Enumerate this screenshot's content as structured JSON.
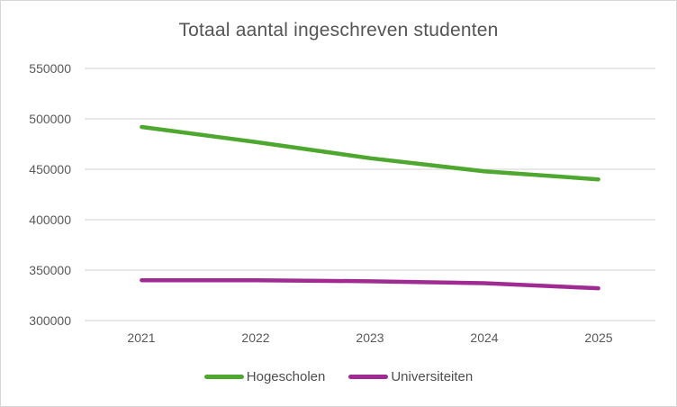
{
  "window": {
    "background_color": "#ffffff",
    "border_color": "#d6d6d6"
  },
  "chart_data": {
    "type": "line",
    "title": "Totaal aantal ingeschreven studenten",
    "categories": [
      "2021",
      "2022",
      "2023",
      "2024",
      "2025"
    ],
    "series": [
      {
        "name": "Hogescholen",
        "color": "#4ea72e",
        "values": [
          492000,
          477000,
          461000,
          448000,
          440000
        ]
      },
      {
        "name": "Universiteiten",
        "color": "#a02b93",
        "values": [
          340000,
          340000,
          339000,
          337000,
          332000
        ]
      }
    ],
    "ylim": [
      300000,
      550000
    ],
    "ytick_step": 50000,
    "yticks": [
      "550000",
      "500000",
      "450000",
      "400000",
      "350000",
      "300000"
    ],
    "xlabel": "",
    "ylabel": "",
    "grid": true,
    "gridline_color": "#d9d9d9",
    "legend_position": "bottom",
    "text_color": "#595959",
    "title_color": "#555555"
  }
}
